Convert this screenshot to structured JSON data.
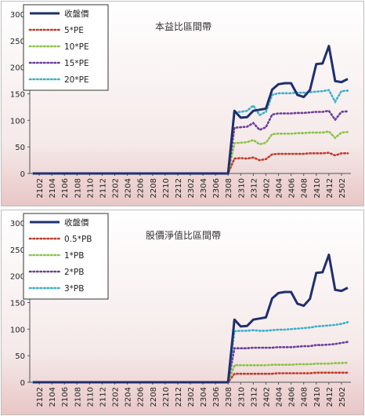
{
  "chart_data": [
    {
      "type": "line",
      "title": "本益比區間帶",
      "xlabel": "",
      "ylabel": "",
      "ylim": [
        0,
        300
      ],
      "yticks": [
        0,
        50,
        100,
        150,
        200,
        250,
        300
      ],
      "grid": false,
      "legend_position": "top-left",
      "xtick_labels": [
        "2102",
        "2104",
        "2106",
        "2108",
        "2110",
        "2112",
        "2202",
        "2204",
        "2206",
        "2208",
        "2210",
        "2212",
        "2302",
        "2304",
        "2306",
        "2308",
        "2310",
        "2312",
        "2402",
        "2404",
        "2406",
        "2408",
        "2410",
        "2412",
        "2502"
      ],
      "x": [
        "2101",
        "2102",
        "2103",
        "2104",
        "2105",
        "2106",
        "2107",
        "2108",
        "2109",
        "2110",
        "2111",
        "2112",
        "2201",
        "2202",
        "2203",
        "2204",
        "2205",
        "2206",
        "2207",
        "2208",
        "2209",
        "2210",
        "2211",
        "2212",
        "2301",
        "2302",
        "2303",
        "2304",
        "2305",
        "2306",
        "2307",
        "2308",
        "2309",
        "2310",
        "2311",
        "2312",
        "2401",
        "2402",
        "2403",
        "2404",
        "2405",
        "2406",
        "2407",
        "2408",
        "2409",
        "2410",
        "2411",
        "2412",
        "2501",
        "2502",
        "2503"
      ],
      "series": [
        {
          "name": "收盤價",
          "color": "#1f2f6e",
          "style": "solid",
          "values": [
            0,
            0,
            0,
            0,
            0,
            0,
            0,
            0,
            0,
            0,
            0,
            0,
            0,
            0,
            0,
            0,
            0,
            0,
            0,
            0,
            0,
            0,
            0,
            0,
            0,
            0,
            0,
            0,
            0,
            0,
            0,
            0,
            118,
            105,
            106,
            118,
            120,
            122,
            158,
            168,
            170,
            170,
            148,
            144,
            157,
            206,
            207,
            240,
            174,
            172,
            178
          ]
        },
        {
          "name": "5*PE",
          "color": "#c0392b",
          "style": "dotted",
          "values": [
            0,
            0,
            0,
            0,
            0,
            0,
            0,
            0,
            0,
            0,
            0,
            0,
            0,
            0,
            0,
            0,
            0,
            0,
            0,
            0,
            0,
            0,
            0,
            0,
            0,
            0,
            0,
            0,
            0,
            0,
            0,
            0,
            28,
            29,
            28,
            30,
            25,
            27,
            36,
            37,
            37,
            37,
            37,
            37,
            38,
            38,
            38,
            39,
            34,
            38,
            38
          ]
        },
        {
          "name": "10*PE",
          "color": "#8bc34a",
          "style": "dotted",
          "values": [
            0,
            0,
            0,
            0,
            0,
            0,
            0,
            0,
            0,
            0,
            0,
            0,
            0,
            0,
            0,
            0,
            0,
            0,
            0,
            0,
            0,
            0,
            0,
            0,
            0,
            0,
            0,
            0,
            0,
            0,
            0,
            0,
            57,
            58,
            59,
            63,
            55,
            58,
            74,
            75,
            75,
            75,
            76,
            76,
            77,
            77,
            77,
            79,
            67,
            77,
            78
          ]
        },
        {
          "name": "15*PE",
          "color": "#6a3d9a",
          "style": "dotted",
          "values": [
            0,
            0,
            0,
            0,
            0,
            0,
            0,
            0,
            0,
            0,
            0,
            0,
            0,
            0,
            0,
            0,
            0,
            0,
            0,
            0,
            0,
            0,
            0,
            0,
            0,
            0,
            0,
            0,
            0,
            0,
            0,
            0,
            86,
            87,
            88,
            95,
            82,
            87,
            111,
            113,
            113,
            113,
            114,
            114,
            115,
            116,
            116,
            118,
            101,
            116,
            117
          ]
        },
        {
          "name": "20*PE",
          "color": "#3bb0c9",
          "style": "dotted",
          "values": [
            0,
            0,
            0,
            0,
            0,
            0,
            0,
            0,
            0,
            0,
            0,
            0,
            0,
            0,
            0,
            0,
            0,
            0,
            0,
            0,
            0,
            0,
            0,
            0,
            0,
            0,
            0,
            0,
            0,
            0,
            0,
            0,
            115,
            116,
            118,
            128,
            110,
            116,
            148,
            151,
            151,
            151,
            152,
            152,
            153,
            154,
            155,
            157,
            135,
            155,
            156
          ]
        }
      ]
    },
    {
      "type": "line",
      "title": "股價淨值比區間帶",
      "xlabel": "",
      "ylabel": "",
      "ylim": [
        0,
        300
      ],
      "yticks": [
        0,
        50,
        100,
        150,
        200,
        250,
        300
      ],
      "grid": false,
      "legend_position": "top-left",
      "xtick_labels": [
        "2102",
        "2104",
        "2106",
        "2108",
        "2110",
        "2112",
        "2202",
        "2204",
        "2206",
        "2208",
        "2210",
        "2212",
        "2302",
        "2304",
        "2306",
        "2308",
        "2310",
        "2312",
        "2402",
        "2404",
        "2406",
        "2408",
        "2410",
        "2412",
        "2502"
      ],
      "x": [
        "2101",
        "2102",
        "2103",
        "2104",
        "2105",
        "2106",
        "2107",
        "2108",
        "2109",
        "2110",
        "2111",
        "2112",
        "2201",
        "2202",
        "2203",
        "2204",
        "2205",
        "2206",
        "2207",
        "2208",
        "2209",
        "2210",
        "2211",
        "2212",
        "2301",
        "2302",
        "2303",
        "2304",
        "2305",
        "2306",
        "2307",
        "2308",
        "2309",
        "2310",
        "2311",
        "2312",
        "2401",
        "2402",
        "2403",
        "2404",
        "2405",
        "2406",
        "2407",
        "2408",
        "2409",
        "2410",
        "2411",
        "2412",
        "2501",
        "2502",
        "2503"
      ],
      "series": [
        {
          "name": "收盤價",
          "color": "#1f2f6e",
          "style": "solid",
          "values": [
            0,
            0,
            0,
            0,
            0,
            0,
            0,
            0,
            0,
            0,
            0,
            0,
            0,
            0,
            0,
            0,
            0,
            0,
            0,
            0,
            0,
            0,
            0,
            0,
            0,
            0,
            0,
            0,
            0,
            0,
            0,
            0,
            118,
            105,
            106,
            118,
            120,
            122,
            158,
            168,
            170,
            170,
            148,
            144,
            157,
            206,
            207,
            240,
            174,
            172,
            178
          ]
        },
        {
          "name": "0.5*PB",
          "color": "#c0392b",
          "style": "dotted",
          "values": [
            0,
            0,
            0,
            0,
            0,
            0,
            0,
            0,
            0,
            0,
            0,
            0,
            0,
            0,
            0,
            0,
            0,
            0,
            0,
            0,
            0,
            0,
            0,
            0,
            0,
            0,
            0,
            0,
            0,
            0,
            0,
            0,
            16,
            16,
            16,
            16,
            16,
            16,
            16,
            17,
            17,
            17,
            17,
            17,
            17,
            18,
            18,
            18,
            18,
            18,
            18
          ]
        },
        {
          "name": "1*PB",
          "color": "#8bc34a",
          "style": "dotted",
          "values": [
            0,
            0,
            0,
            0,
            0,
            0,
            0,
            0,
            0,
            0,
            0,
            0,
            0,
            0,
            0,
            0,
            0,
            0,
            0,
            0,
            0,
            0,
            0,
            0,
            0,
            0,
            0,
            0,
            0,
            0,
            0,
            0,
            32,
            32,
            32,
            32,
            32,
            32,
            33,
            33,
            33,
            33,
            34,
            34,
            34,
            35,
            35,
            35,
            36,
            36,
            37
          ]
        },
        {
          "name": "2*PB",
          "color": "#6a3d9a",
          "style": "dotted",
          "values": [
            0,
            0,
            0,
            0,
            0,
            0,
            0,
            0,
            0,
            0,
            0,
            0,
            0,
            0,
            0,
            0,
            0,
            0,
            0,
            0,
            0,
            0,
            0,
            0,
            0,
            0,
            0,
            0,
            0,
            0,
            0,
            0,
            64,
            64,
            64,
            65,
            65,
            65,
            65,
            66,
            66,
            66,
            67,
            68,
            68,
            70,
            70,
            71,
            72,
            74,
            76
          ]
        },
        {
          "name": "3*PB",
          "color": "#3bb0c9",
          "style": "dotted",
          "values": [
            0,
            0,
            0,
            0,
            0,
            0,
            0,
            0,
            0,
            0,
            0,
            0,
            0,
            0,
            0,
            0,
            0,
            0,
            0,
            0,
            0,
            0,
            0,
            0,
            0,
            0,
            0,
            0,
            0,
            0,
            0,
            0,
            96,
            97,
            97,
            98,
            97,
            97,
            98,
            99,
            99,
            100,
            101,
            102,
            103,
            105,
            106,
            107,
            108,
            110,
            113
          ]
        }
      ]
    }
  ]
}
